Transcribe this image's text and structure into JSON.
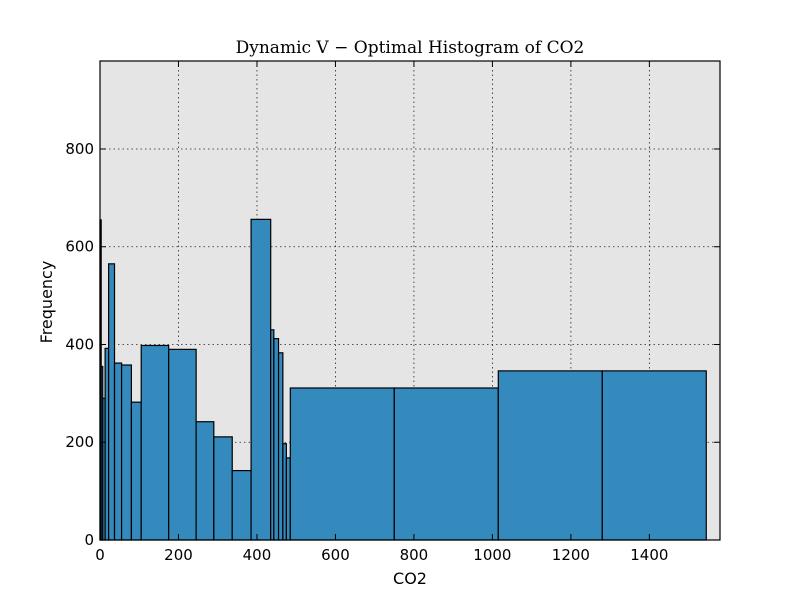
{
  "chart_data": {
    "type": "bar",
    "title": "Dynamic V − Optimal Histogram of CO2",
    "xlabel": "CO2",
    "ylabel": "Frequency",
    "xlim": [
      0,
      1580
    ],
    "ylim": [
      0,
      980
    ],
    "xticks": [
      0,
      200,
      400,
      600,
      800,
      1000,
      1200,
      1400
    ],
    "yticks": [
      0,
      200,
      400,
      600,
      800
    ],
    "grid": true,
    "bar_color": "#348ABD",
    "background_color": "#E5E5E5",
    "bins": [
      {
        "x0": 0,
        "x1": 3,
        "value": 655
      },
      {
        "x0": 3,
        "x1": 7,
        "value": 355
      },
      {
        "x0": 7,
        "x1": 13,
        "value": 290
      },
      {
        "x0": 13,
        "x1": 22,
        "value": 392
      },
      {
        "x0": 22,
        "x1": 37,
        "value": 565
      },
      {
        "x0": 37,
        "x1": 55,
        "value": 362
      },
      {
        "x0": 55,
        "x1": 80,
        "value": 358
      },
      {
        "x0": 80,
        "x1": 105,
        "value": 282
      },
      {
        "x0": 105,
        "x1": 175,
        "value": 398
      },
      {
        "x0": 175,
        "x1": 245,
        "value": 390
      },
      {
        "x0": 245,
        "x1": 290,
        "value": 242
      },
      {
        "x0": 290,
        "x1": 337,
        "value": 211
      },
      {
        "x0": 337,
        "x1": 385,
        "value": 142
      },
      {
        "x0": 385,
        "x1": 435,
        "value": 656
      },
      {
        "x0": 435,
        "x1": 443,
        "value": 430
      },
      {
        "x0": 443,
        "x1": 455,
        "value": 412
      },
      {
        "x0": 455,
        "x1": 466,
        "value": 383
      },
      {
        "x0": 466,
        "x1": 475,
        "value": 197
      },
      {
        "x0": 475,
        "x1": 485,
        "value": 168
      },
      {
        "x0": 485,
        "x1": 750,
        "value": 311
      },
      {
        "x0": 750,
        "x1": 1015,
        "value": 311
      },
      {
        "x0": 1015,
        "x1": 1280,
        "value": 346
      },
      {
        "x0": 1280,
        "x1": 1545,
        "value": 346
      }
    ]
  }
}
